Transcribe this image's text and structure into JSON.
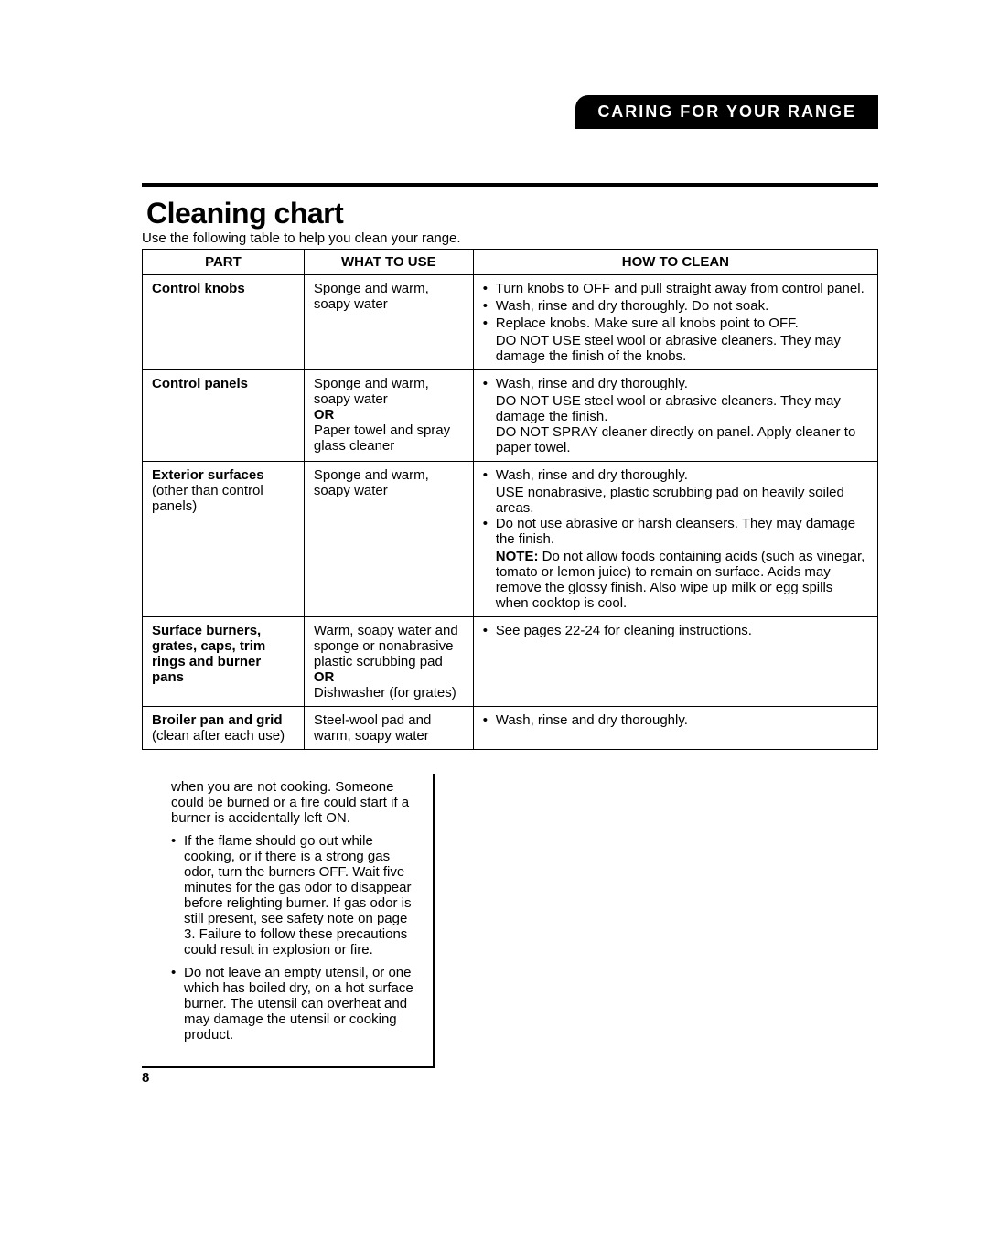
{
  "header": "CARING FOR YOUR RANGE",
  "title": "Cleaning chart",
  "subtitle": "Use the following table to help you clean your range.",
  "columns": {
    "part": "PART",
    "what": "WHAT TO USE",
    "how": "HOW TO CLEAN"
  },
  "rows": [
    {
      "part_bold": "Control knobs",
      "part_rest": "",
      "what": "Sponge and warm, soapy water",
      "how_bullets": [
        "Turn knobs to OFF and pull straight away from control panel.",
        "Wash, rinse and dry thoroughly. Do not soak.",
        "Replace knobs. Make sure all knobs point to OFF."
      ],
      "how_after": "DO NOT USE steel wool or abrasive cleaners. They may damage the finish of the knobs."
    },
    {
      "part_bold": "Control panels",
      "part_rest": "",
      "what": "Sponge and warm, soapy water\nOR\nPaper towel and spray glass cleaner",
      "how_bullets": [
        "Wash, rinse and dry thoroughly."
      ],
      "how_after": "DO NOT USE steel wool or abrasive cleaners. They may damage the finish.\nDO NOT SPRAY cleaner directly on panel. Apply cleaner to paper towel."
    },
    {
      "part_bold": "Exterior surfaces",
      "part_rest": " (other than control panels)",
      "what": "Sponge and warm, soapy water",
      "how_bullets": [
        "Wash, rinse and dry thoroughly."
      ],
      "how_after": "USE nonabrasive, plastic scrubbing pad on heavily soiled areas.",
      "how_bullets2": [
        "Do not use abrasive or harsh cleansers. They may damage the finish."
      ],
      "how_note": "NOTE: Do not allow foods containing acids (such as vinegar, tomato or lemon juice) to remain on surface. Acids may remove the glossy finish. Also wipe up milk or egg spills when cooktop is cool."
    },
    {
      "part_bold": "Surface burners, grates, caps, trim rings and burner pans",
      "part_rest": "",
      "what": "Warm, soapy water and sponge or nonabrasive plastic scrubbing pad\nOR\nDishwasher (for grates)",
      "how_bullets": [
        "See pages 22-24 for cleaning instructions."
      ]
    },
    {
      "part_bold": "Broiler pan and grid",
      "part_rest": " (clean after each use)",
      "what": "Steel-wool pad and warm, soapy water",
      "how_bullets": [
        "Wash, rinse and dry thoroughly."
      ]
    }
  ],
  "warning": {
    "lead": "when you are not cooking. Someone could be burned or a fire could start if a burner is accidentally left ON.",
    "items": [
      "If the flame should go out while cooking, or if there is a strong gas odor, turn the burners OFF. Wait five minutes for the gas odor to disappear before relighting burner. If gas odor is still present, see safety note on page 3. Failure to follow these precautions could result in explosion or fire.",
      "Do not leave an empty utensil, or one which has boiled dry, on a hot surface burner. The utensil can overheat and may damage the utensil or cooking product."
    ]
  },
  "page_num": "8",
  "note_label": "NOTE:",
  "or_label": "OR"
}
